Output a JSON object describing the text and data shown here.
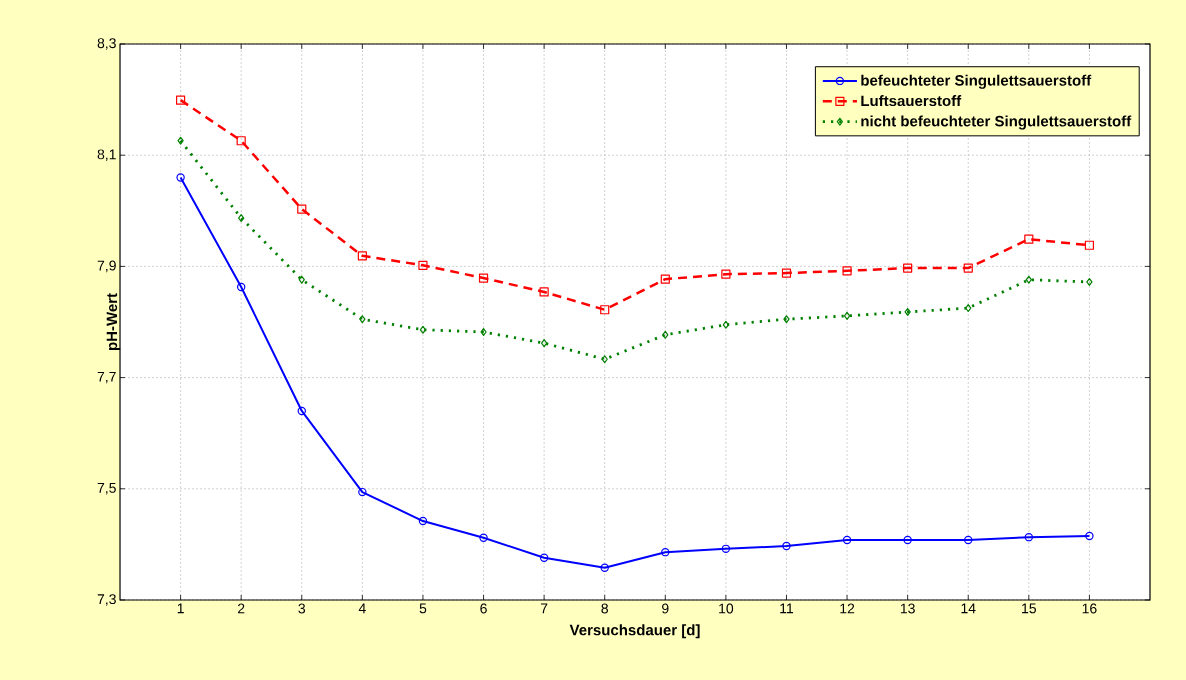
{
  "chart_data": {
    "type": "line",
    "xlabel": "Versuchsdauer [d]",
    "ylabel": "pH-Wert",
    "categories": [
      "1",
      "2",
      "3",
      "4",
      "5",
      "6",
      "7",
      "8",
      "9",
      "10",
      "11",
      "12",
      "13",
      "14",
      "15",
      "16"
    ],
    "series": [
      {
        "name": "befeuchteter Singulettsauerstoff",
        "color": "#0000ff",
        "marker": "circle",
        "line_style": "solid",
        "values": [
          8.06,
          7.863,
          7.64,
          7.494,
          7.442,
          7.412,
          7.376,
          7.358,
          7.386,
          7.392,
          7.397,
          7.408,
          7.408,
          7.408,
          7.413,
          7.415
        ]
      },
      {
        "name": "Luftsauerstoff",
        "color": "#ff0000",
        "marker": "square",
        "line_style": "dashed",
        "values": [
          8.199,
          8.126,
          8.003,
          7.919,
          7.902,
          7.879,
          7.854,
          7.822,
          7.877,
          7.886,
          7.888,
          7.892,
          7.897,
          7.897,
          7.949,
          7.938
        ]
      },
      {
        "name": "nicht befeuchteter Singulettsauerstoff",
        "color": "#008000",
        "marker": "diamond",
        "line_style": "dotted",
        "values": [
          8.126,
          7.987,
          7.876,
          7.805,
          7.786,
          7.782,
          7.762,
          7.733,
          7.777,
          7.795,
          7.805,
          7.811,
          7.818,
          7.825,
          7.876,
          7.872
        ]
      }
    ],
    "ylim": [
      7.3,
      8.3
    ],
    "yticks": [
      {
        "value": 7.3,
        "label": "7,3"
      },
      {
        "value": 7.5,
        "label": "7,5"
      },
      {
        "value": 7.7,
        "label": "7,7"
      },
      {
        "value": 7.9,
        "label": "7,9"
      },
      {
        "value": 8.1,
        "label": "8,1"
      },
      {
        "value": 8.3,
        "label": "8,3"
      }
    ],
    "grid": true,
    "legend": "top right"
  }
}
